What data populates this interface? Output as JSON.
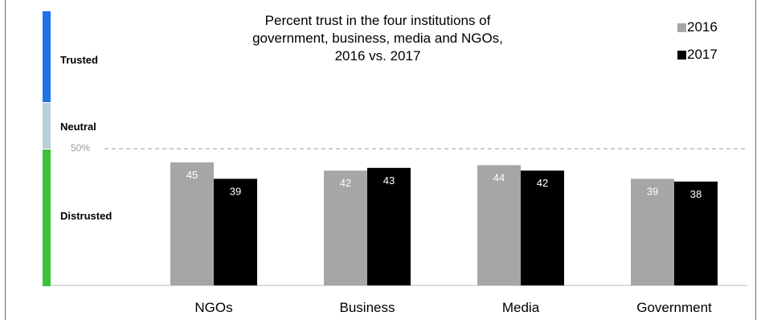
{
  "chart_data": {
    "type": "bar",
    "title": "Percent trust in the four institutions of government, business, media and NGOs, 2016 vs. 2017",
    "title_lines": [
      "Percent trust in the four institutions of",
      "government, business, media and NGOs,",
      "2016 vs. 2017"
    ],
    "categories": [
      "NGOs",
      "Business",
      "Media",
      "Government"
    ],
    "series": [
      {
        "name": "2016",
        "values": [
          45,
          42,
          44,
          39
        ],
        "color": "#a6a6a6"
      },
      {
        "name": "2017",
        "values": [
          39,
          43,
          42,
          38
        ],
        "color": "#000000"
      }
    ],
    "ylim": [
      0,
      50
    ],
    "reference_line": {
      "label": "50%",
      "value": 50
    },
    "legend_position": "top-right",
    "grid": false,
    "bands": [
      {
        "label": "Trusted",
        "color": "#1e73e8"
      },
      {
        "label": "Neutral",
        "color": "#b9cfd9"
      },
      {
        "label": "Distrusted",
        "color": "#3cc23c"
      }
    ]
  }
}
